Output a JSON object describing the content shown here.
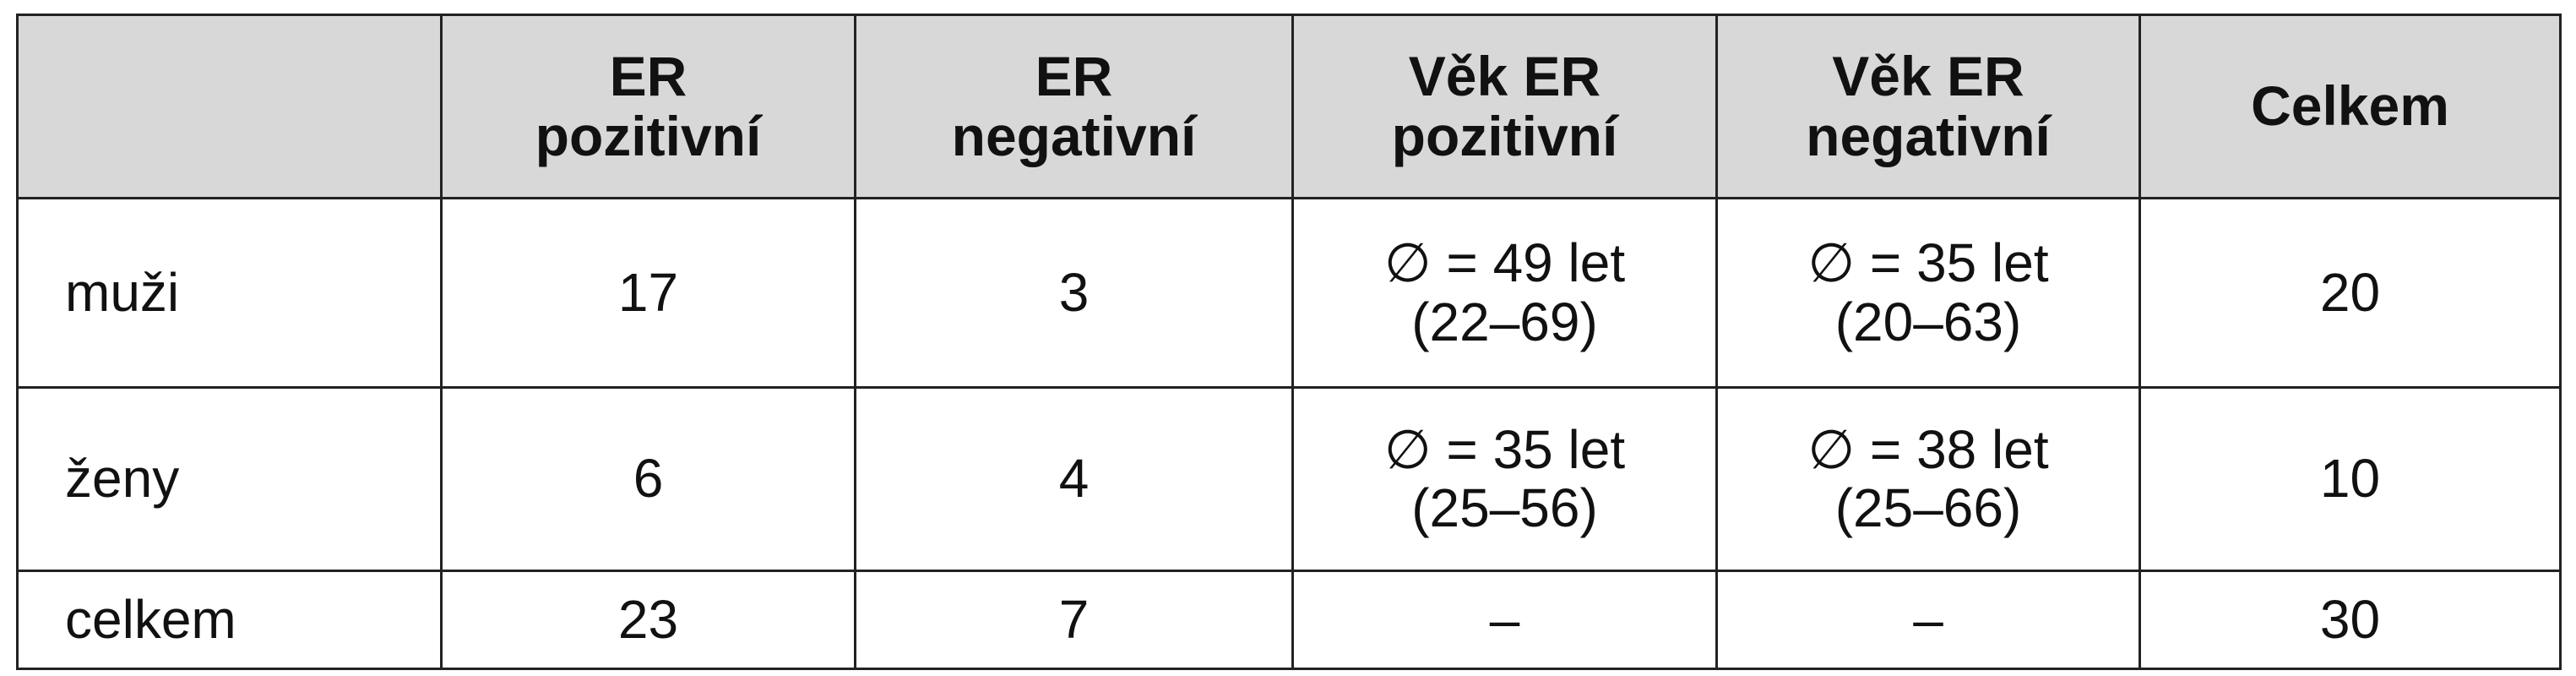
{
  "table": {
    "header": [
      "",
      "ER\npozitivní",
      "ER\nnegativní",
      "Věk ER\npozitivní",
      "Věk ER\nnegativní",
      "Celkem"
    ],
    "rows": [
      [
        "muži",
        "17",
        "3",
        "∅ = 49 let\n(22–69)",
        "∅ = 35 let\n(20–63)",
        "20"
      ],
      [
        "ženy",
        "6",
        "4",
        "∅ = 35 let\n(25–56)",
        "∅ = 38 let\n(25–66)",
        "10"
      ],
      [
        "celkem",
        "23",
        "7",
        "–",
        "–",
        "30"
      ]
    ]
  }
}
